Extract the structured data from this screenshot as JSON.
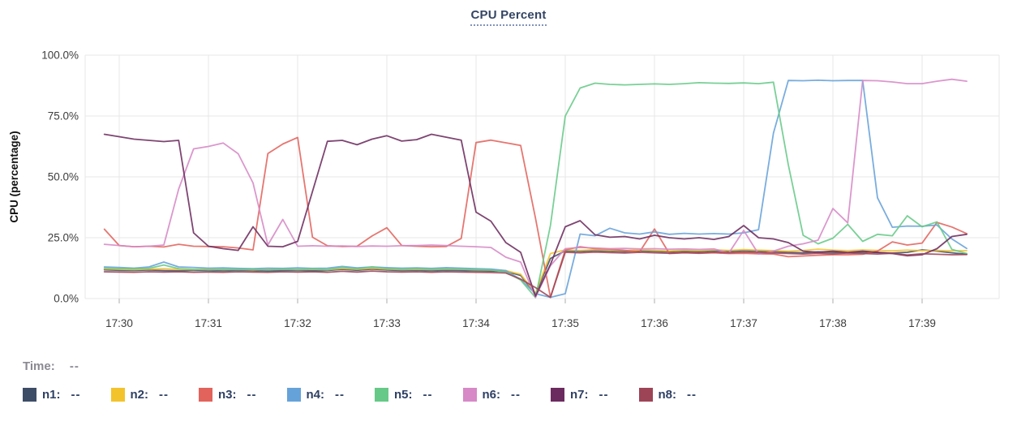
{
  "chart_data": {
    "type": "line",
    "title": "CPU Percent",
    "xlabel": "",
    "ylabel": "CPU (percentage)",
    "ylim": [
      0,
      100
    ],
    "grid": true,
    "legend_position": "bottom",
    "y_ticks": [
      {
        "value": 0,
        "label": "0.0%"
      },
      {
        "value": 25,
        "label": "25.0%"
      },
      {
        "value": 50,
        "label": "50.0%"
      },
      {
        "value": 75,
        "label": "75.0%"
      },
      {
        "value": 100,
        "label": "100.0%"
      }
    ],
    "x_minute_ticks": [
      "17:30",
      "17:31",
      "17:32",
      "17:33",
      "17:34",
      "17:35",
      "17:36",
      "17:37",
      "17:38",
      "17:39"
    ],
    "x": [
      "17:29:50",
      "17:30:00",
      "17:30:10",
      "17:30:20",
      "17:30:30",
      "17:30:40",
      "17:30:50",
      "17:31:00",
      "17:31:10",
      "17:31:20",
      "17:31:30",
      "17:31:40",
      "17:31:50",
      "17:32:00",
      "17:32:10",
      "17:32:20",
      "17:32:30",
      "17:32:40",
      "17:32:50",
      "17:33:00",
      "17:33:10",
      "17:33:20",
      "17:33:30",
      "17:33:40",
      "17:33:50",
      "17:34:00",
      "17:34:10",
      "17:34:20",
      "17:34:30",
      "17:34:40",
      "17:34:50",
      "17:35:00",
      "17:35:10",
      "17:35:20",
      "17:35:30",
      "17:35:40",
      "17:35:50",
      "17:36:00",
      "17:36:10",
      "17:36:20",
      "17:36:30",
      "17:36:40",
      "17:36:50",
      "17:37:00",
      "17:37:10",
      "17:37:20",
      "17:37:30",
      "17:37:40",
      "17:37:50",
      "17:38:00",
      "17:38:10",
      "17:38:20",
      "17:38:30",
      "17:38:40",
      "17:38:50",
      "17:39:00",
      "17:39:10",
      "17:39:20",
      "17:39:30"
    ],
    "series": [
      {
        "name": "n1",
        "color": "#3e4d66",
        "legend_value": "--",
        "values": [
          11.8,
          11.6,
          11.5,
          11.7,
          11.5,
          11.4,
          11.6,
          11.5,
          11.4,
          11.6,
          11.5,
          11.3,
          11.5,
          11.6,
          11.4,
          11.5,
          12.0,
          11.6,
          12.1,
          11.7,
          11.5,
          11.6,
          11.4,
          11.6,
          11.5,
          11.4,
          11.3,
          11.2,
          9.5,
          1.8,
          16.5,
          19.6,
          19.4,
          19.7,
          19.5,
          19.3,
          19.6,
          19.4,
          19.2,
          19.5,
          19.3,
          19.6,
          19.4,
          19.7,
          19.5,
          19.3,
          19.0,
          18.8,
          19.2,
          19.0,
          18.8,
          19.1,
          18.9,
          18.7,
          19.0,
          20.0,
          19.5,
          18.8,
          18.2
        ]
      },
      {
        "name": "n2",
        "color": "#f3c32c",
        "legend_value": "--",
        "values": [
          12.2,
          12.0,
          11.9,
          12.1,
          12.3,
          12.0,
          11.9,
          12.1,
          11.9,
          12.0,
          11.8,
          12.0,
          12.1,
          11.9,
          12.0,
          11.8,
          12.4,
          12.0,
          12.5,
          12.1,
          11.9,
          12.0,
          11.9,
          12.1,
          12.0,
          11.8,
          11.7,
          11.5,
          10.0,
          2.2,
          18.5,
          20.0,
          19.8,
          20.1,
          19.9,
          19.7,
          20.0,
          19.8,
          19.6,
          19.9,
          19.7,
          20.0,
          19.8,
          20.1,
          19.9,
          19.7,
          19.5,
          19.8,
          20.3,
          19.9,
          19.7,
          20.0,
          19.8,
          19.6,
          19.9,
          19.7,
          19.8,
          19.6,
          19.7
        ]
      },
      {
        "name": "n3",
        "color": "#e2635c",
        "legend_value": "--",
        "values": [
          28.5,
          21.8,
          21.3,
          21.5,
          21.2,
          22.3,
          21.5,
          21.4,
          21.3,
          20.8,
          20.0,
          59.6,
          63.5,
          66.2,
          25.2,
          21.7,
          21.4,
          21.5,
          25.7,
          29.1,
          21.8,
          21.5,
          21.3,
          21.4,
          24.7,
          64.1,
          65.1,
          64.0,
          62.9,
          33.0,
          0.5,
          20.0,
          21.3,
          20.5,
          20.3,
          19.8,
          19.2,
          28.6,
          18.5,
          18.8,
          18.6,
          18.8,
          18.5,
          18.6,
          18.4,
          18.3,
          17.2,
          17.5,
          17.8,
          18.0,
          18.0,
          18.2,
          19.5,
          23.3,
          22.0,
          22.8,
          31.3,
          29.4,
          26.7
        ]
      },
      {
        "name": "n4",
        "color": "#66a2da",
        "legend_value": "--",
        "values": [
          13.0,
          12.8,
          12.5,
          13.0,
          15.0,
          13.0,
          12.8,
          12.5,
          12.6,
          12.4,
          12.3,
          12.5,
          12.4,
          12.6,
          12.4,
          12.5,
          13.2,
          12.6,
          13.0,
          12.7,
          12.5,
          12.6,
          12.4,
          12.7,
          12.5,
          12.3,
          12.1,
          11.5,
          7.8,
          2.0,
          0.5,
          2.0,
          26.5,
          25.8,
          28.9,
          27.0,
          26.5,
          27.4,
          26.4,
          26.8,
          26.5,
          26.7,
          26.5,
          27.0,
          28.3,
          68.0,
          89.6,
          89.5,
          89.7,
          89.5,
          89.6,
          89.6,
          41.4,
          29.3,
          29.8,
          29.7,
          30.2,
          24.5,
          20.6
        ]
      },
      {
        "name": "n5",
        "color": "#66c987",
        "legend_value": "--",
        "values": [
          12.5,
          12.3,
          12.2,
          12.4,
          13.8,
          12.3,
          12.0,
          11.8,
          12.0,
          11.9,
          12.0,
          11.8,
          12.0,
          11.9,
          12.1,
          11.9,
          12.8,
          12.2,
          13.0,
          12.3,
          12.0,
          12.2,
          12.0,
          12.1,
          12.0,
          11.9,
          11.8,
          10.9,
          7.6,
          0.4,
          30.0,
          75.0,
          86.5,
          88.5,
          88.0,
          87.8,
          88.0,
          88.2,
          88.0,
          88.3,
          88.7,
          88.5,
          88.4,
          88.6,
          88.3,
          88.9,
          55.0,
          26.0,
          22.5,
          24.8,
          30.5,
          23.5,
          26.4,
          25.8,
          34.0,
          29.5,
          31.5,
          20.2,
          18.5
        ]
      },
      {
        "name": "n6",
        "color": "#d689c6",
        "legend_value": "--",
        "values": [
          22.3,
          21.8,
          21.3,
          21.5,
          22.0,
          45.0,
          61.5,
          62.5,
          63.9,
          59.5,
          47.5,
          22.0,
          32.5,
          21.5,
          21.7,
          21.5,
          21.6,
          21.4,
          21.6,
          21.5,
          21.7,
          21.8,
          22.0,
          21.8,
          21.5,
          21.3,
          21.0,
          17.0,
          15.0,
          0.5,
          13.5,
          20.5,
          21.0,
          20.8,
          20.5,
          20.6,
          20.4,
          20.5,
          20.3,
          20.4,
          20.2,
          20.4,
          18.7,
          28.0,
          18.3,
          19.5,
          21.5,
          22.5,
          24.0,
          37.0,
          31.1,
          89.6,
          89.5,
          89.0,
          88.3,
          88.3,
          89.3,
          90.1,
          89.3
        ]
      },
      {
        "name": "n7",
        "color": "#6c2b5f",
        "legend_value": "--",
        "values": [
          67.5,
          66.5,
          65.5,
          65.0,
          64.5,
          65.0,
          27.0,
          21.5,
          20.5,
          19.8,
          29.5,
          21.5,
          21.3,
          23.5,
          44.0,
          64.6,
          65.0,
          63.2,
          65.5,
          66.9,
          64.7,
          65.3,
          67.5,
          66.3,
          65.1,
          35.5,
          31.8,
          23.0,
          19.0,
          1.0,
          14.0,
          29.5,
          32.0,
          26.2,
          25.2,
          25.5,
          24.5,
          26.0,
          25.0,
          24.5,
          25.0,
          24.3,
          25.5,
          30.0,
          25.0,
          24.5,
          23.0,
          19.5,
          19.0,
          19.5,
          19.0,
          19.5,
          19.0,
          18.5,
          17.6,
          18.0,
          20.5,
          25.5,
          26.4
        ]
      },
      {
        "name": "n8",
        "color": "#9d4457",
        "legend_value": "--",
        "values": [
          11.0,
          10.9,
          10.8,
          11.0,
          10.9,
          11.0,
          10.8,
          10.9,
          10.8,
          11.0,
          10.9,
          10.8,
          11.0,
          10.9,
          11.0,
          10.8,
          11.2,
          10.9,
          11.3,
          11.0,
          10.9,
          11.0,
          10.8,
          11.0,
          10.9,
          10.8,
          10.7,
          10.5,
          8.0,
          4.5,
          0.5,
          19.0,
          18.8,
          19.1,
          18.9,
          18.7,
          19.0,
          18.8,
          18.6,
          18.9,
          18.7,
          19.0,
          18.8,
          19.1,
          18.9,
          18.7,
          18.5,
          18.3,
          18.6,
          18.4,
          18.7,
          18.5,
          18.3,
          18.6,
          17.9,
          18.4,
          18.2,
          18.0,
          18.1
        ]
      }
    ]
  },
  "readout": {
    "time_label": "Time:",
    "time_value": "--"
  },
  "style": {
    "title_color": "#344563",
    "title_underline_color": "#8193bb",
    "legend_text_color": "#2e3f63",
    "readout_text_color": "#8a8a92",
    "grid_color": "#e7e7e7",
    "tick_mark_color": "#c9c9c9",
    "axis_text_color": "#3d3d3d",
    "background_color": "#ffffff"
  }
}
